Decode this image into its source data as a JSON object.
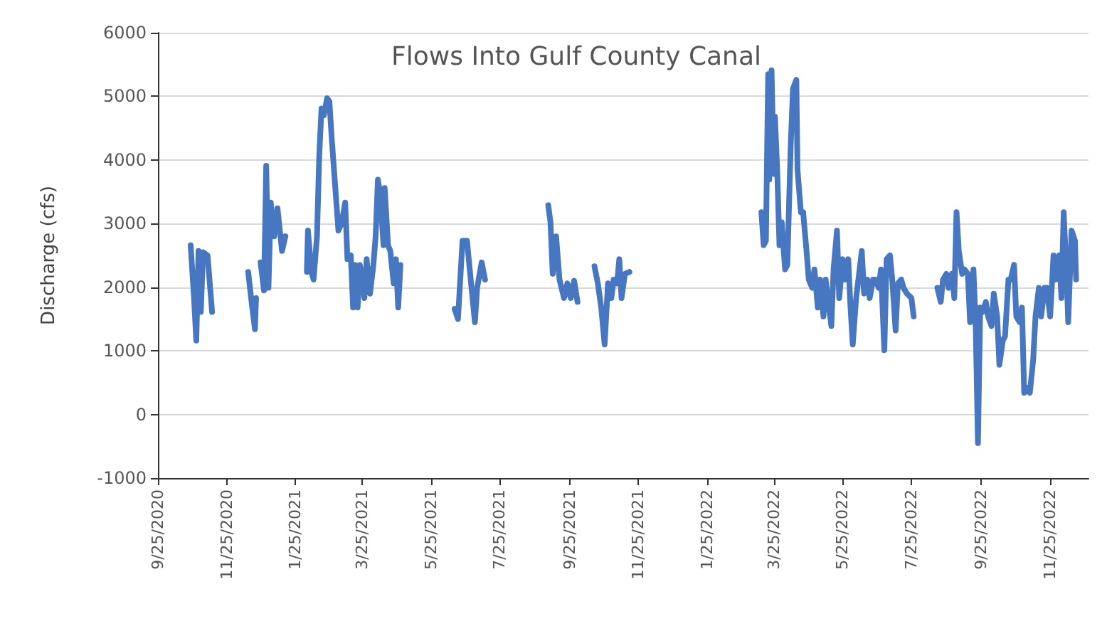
{
  "chart_data": {
    "type": "line",
    "title": "Flows Into Gulf County Canal",
    "ylabel": "Discharge (cfs)",
    "xlim": [
      "2020-09-25",
      "2022-12-29"
    ],
    "xticks": [
      {
        "value": "2020-09-25",
        "label": "9/25/2020"
      },
      {
        "value": "2020-11-25",
        "label": "11/25/2020"
      },
      {
        "value": "2021-01-25",
        "label": "1/25/2021"
      },
      {
        "value": "2021-03-25",
        "label": "3/25/2021"
      },
      {
        "value": "2021-05-25",
        "label": "5/25/2021"
      },
      {
        "value": "2021-07-25",
        "label": "7/25/2021"
      },
      {
        "value": "2021-09-25",
        "label": "9/25/2021"
      },
      {
        "value": "2021-11-25",
        "label": "11/25/2021"
      },
      {
        "value": "2022-01-25",
        "label": "1/25/2022"
      },
      {
        "value": "2022-03-25",
        "label": "3/25/2022"
      },
      {
        "value": "2022-05-25",
        "label": "5/25/2022"
      },
      {
        "value": "2022-07-25",
        "label": "7/25/2022"
      },
      {
        "value": "2022-09-25",
        "label": "9/25/2022"
      },
      {
        "value": "2022-11-25",
        "label": "11/25/2022"
      }
    ],
    "ylim": [
      -1000,
      6000
    ],
    "yticks": [
      -1000,
      0,
      1000,
      2000,
      3000,
      4000,
      5000,
      6000
    ],
    "grid": "y",
    "marker": "none",
    "line_style": "solid",
    "series": [
      {
        "color": "#4677c0",
        "x": [
          "2020-10-24",
          "2020-10-27",
          "2020-10-29",
          "2020-10-31",
          "2020-11-02",
          "2020-11-04",
          "2020-11-08",
          "2020-11-12",
          "2020-11-28",
          "2020-12-14",
          "2020-12-17",
          "2020-12-20",
          "2020-12-21",
          "2020-12-23",
          "2020-12-25",
          "2020-12-28",
          "2020-12-30",
          "2021-01-01",
          "2021-01-03",
          "2021-01-06",
          "2021-01-09",
          "2021-01-13",
          "2021-01-16",
          "2021-01-25",
          "2021-02-04",
          "2021-02-05",
          "2021-02-08",
          "2021-02-10",
          "2021-02-13",
          "2021-02-15",
          "2021-02-17",
          "2021-02-19",
          "2021-02-22",
          "2021-02-24",
          "2021-02-26",
          "2021-03-01",
          "2021-03-04",
          "2021-03-07",
          "2021-03-10",
          "2021-03-12",
          "2021-03-15",
          "2021-03-17",
          "2021-03-19",
          "2021-03-21",
          "2021-03-23",
          "2021-03-27",
          "2021-03-29",
          "2021-04-01",
          "2021-04-04",
          "2021-04-06",
          "2021-04-08",
          "2021-04-10",
          "2021-04-13",
          "2021-04-14",
          "2021-04-17",
          "2021-04-19",
          "2021-04-22",
          "2021-04-24",
          "2021-04-26",
          "2021-04-28",
          "2021-05-20",
          "2021-06-15",
          "2021-06-18",
          "2021-06-22",
          "2021-06-26",
          "2021-06-30",
          "2021-07-03",
          "2021-07-05",
          "2021-07-09",
          "2021-07-12",
          "2021-08-10",
          "2021-09-06",
          "2021-09-08",
          "2021-09-10",
          "2021-09-13",
          "2021-09-16",
          "2021-09-20",
          "2021-09-23",
          "2021-09-26",
          "2021-09-29",
          "2021-10-02",
          "2021-10-10",
          "2021-10-17",
          "2021-10-20",
          "2021-10-23",
          "2021-10-26",
          "2021-10-29",
          "2021-11-01",
          "2021-11-03",
          "2021-11-06",
          "2021-11-08",
          "2021-11-10",
          "2021-11-13",
          "2021-11-17",
          "2022-01-20",
          "2022-03-14",
          "2022-03-16",
          "2022-03-18",
          "2022-03-20",
          "2022-03-21",
          "2022-03-23",
          "2022-03-25",
          "2022-03-26",
          "2022-03-28",
          "2022-03-30",
          "2022-04-01",
          "2022-04-04",
          "2022-04-06",
          "2022-04-09",
          "2022-04-11",
          "2022-04-14",
          "2022-04-15",
          "2022-04-18",
          "2022-04-20",
          "2022-04-23",
          "2022-04-25",
          "2022-04-28",
          "2022-04-30",
          "2022-05-03",
          "2022-05-05",
          "2022-05-08",
          "2022-05-10",
          "2022-05-13",
          "2022-05-15",
          "2022-05-17",
          "2022-05-20",
          "2022-05-22",
          "2022-05-25",
          "2022-05-27",
          "2022-05-30",
          "2022-06-01",
          "2022-06-03",
          "2022-06-06",
          "2022-06-08",
          "2022-06-11",
          "2022-06-13",
          "2022-06-16",
          "2022-06-18",
          "2022-06-21",
          "2022-06-23",
          "2022-06-26",
          "2022-06-28",
          "2022-07-01",
          "2022-07-03",
          "2022-07-06",
          "2022-07-08",
          "2022-07-11",
          "2022-07-13",
          "2022-07-16",
          "2022-07-18",
          "2022-07-21",
          "2022-07-25",
          "2022-07-27",
          "2022-08-07",
          "2022-08-17",
          "2022-08-20",
          "2022-08-22",
          "2022-08-25",
          "2022-08-27",
          "2022-08-30",
          "2022-09-01",
          "2022-09-03",
          "2022-09-05",
          "2022-09-08",
          "2022-09-10",
          "2022-09-13",
          "2022-09-15",
          "2022-09-18",
          "2022-09-20",
          "2022-09-22",
          "2022-09-24",
          "2022-09-26",
          "2022-09-29",
          "2022-10-01",
          "2022-10-04",
          "2022-10-06",
          "2022-10-09",
          "2022-10-11",
          "2022-10-14",
          "2022-10-16",
          "2022-10-19",
          "2022-10-21",
          "2022-10-24",
          "2022-10-26",
          "2022-10-29",
          "2022-10-31",
          "2022-11-02",
          "2022-11-05",
          "2022-11-07",
          "2022-11-10",
          "2022-11-12",
          "2022-11-15",
          "2022-11-17",
          "2022-11-20",
          "2022-11-22",
          "2022-11-25",
          "2022-11-28",
          "2022-11-30",
          "2022-12-03",
          "2022-12-05",
          "2022-12-07",
          "2022-12-10",
          "2022-12-11",
          "2022-12-14",
          "2022-12-17",
          "2022-12-18"
        ],
        "values": [
          2660,
          1830,
          1160,
          2570,
          1610,
          2550,
          2500,
          1610,
          null,
          2240,
          1770,
          1340,
          1830,
          null,
          2390,
          1950,
          3910,
          1990,
          3330,
          2800,
          3240,
          2570,
          2800,
          null,
          2240,
          2890,
          2240,
          2120,
          2800,
          4070,
          4810,
          4700,
          4970,
          4920,
          4360,
          3620,
          2890,
          3020,
          3330,
          2440,
          2500,
          1680,
          2350,
          1680,
          2350,
          1830,
          2440,
          1900,
          2350,
          2800,
          3690,
          3470,
          2660,
          3560,
          2660,
          2570,
          2060,
          2440,
          1680,
          2350,
          null,
          1660,
          1500,
          2730,
          2730,
          1990,
          1450,
          1990,
          2390,
          2120,
          null,
          3290,
          3020,
          2210,
          2800,
          2120,
          1830,
          2060,
          1830,
          2100,
          1770,
          null,
          2330,
          2060,
          1680,
          1100,
          2060,
          1830,
          2120,
          2060,
          2440,
          1830,
          2210,
          2240,
          null,
          3180,
          2660,
          2730,
          5350,
          3690,
          5410,
          3780,
          4680,
          3850,
          2660,
          3020,
          2280,
          2350,
          4230,
          5120,
          5260,
          3850,
          3180,
          3180,
          2570,
          2120,
          1990,
          2280,
          1680,
          2120,
          1540,
          2120,
          1680,
          1390,
          2280,
          2890,
          1830,
          2440,
          2120,
          2440,
          1680,
          1100,
          1830,
          2120,
          2570,
          1900,
          2120,
          1830,
          2120,
          2120,
          1990,
          2280,
          1010,
          2440,
          2500,
          2120,
          1320,
          2060,
          2120,
          1990,
          1900,
          1830,
          1540,
          null,
          1990,
          1770,
          2120,
          2210,
          1990,
          2210,
          1830,
          3180,
          2570,
          2210,
          2280,
          2210,
          1450,
          2280,
          1390,
          -450,
          1680,
          1610,
          1770,
          1540,
          1390,
          1900,
          1540,
          780,
          1160,
          1230,
          2120,
          2120,
          2350,
          1540,
          1450,
          1680,
          340,
          420,
          340,
          870,
          1540,
          1990,
          1540,
          1990,
          1990,
          1540,
          2500,
          2120,
          2500,
          1830,
          3180,
          1990,
          1450,
          2890,
          2730,
          2120
        ]
      }
    ]
  }
}
